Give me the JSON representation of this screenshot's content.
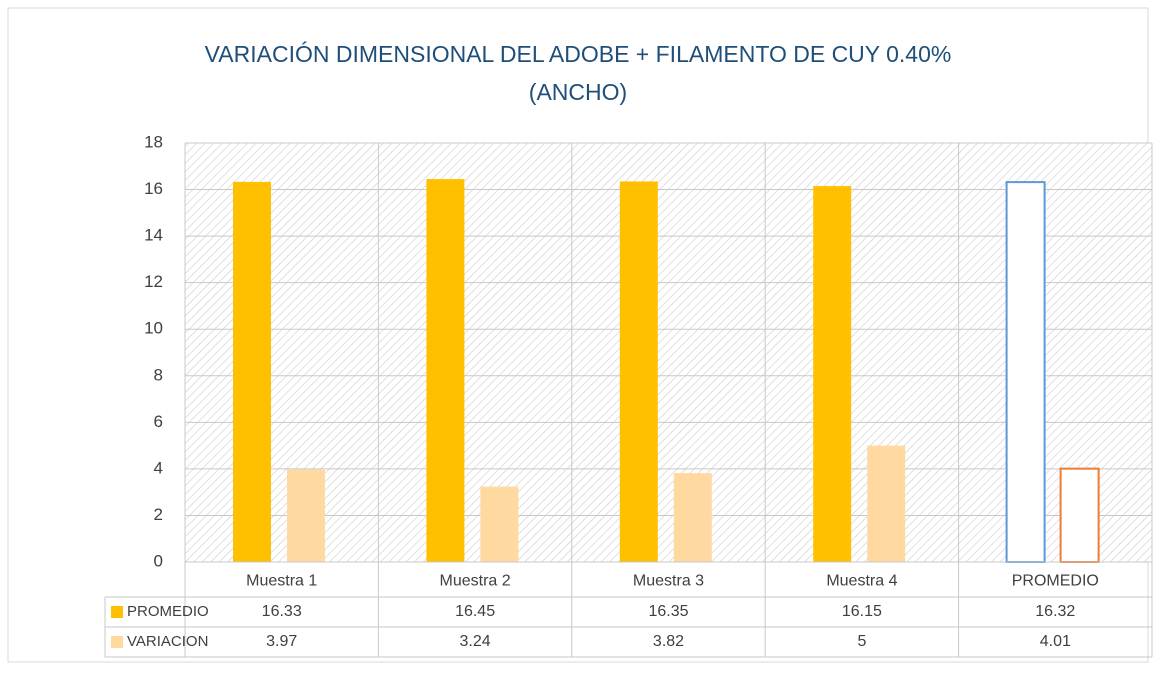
{
  "chart_data": {
    "type": "bar",
    "title": [
      "VARIACIÓN DIMENSIONAL DEL ADOBE + FILAMENTO DE CUY 0.40%",
      "(ANCHO)"
    ],
    "categories": [
      "Muestra 1",
      "Muestra 2",
      "Muestra 3",
      "Muestra 4",
      "PROMEDIO"
    ],
    "series": [
      {
        "name": "PROMEDIO",
        "color": "#ffc000",
        "last_outline_color": "#5b9bd5",
        "values": [
          16.33,
          16.45,
          16.35,
          16.15,
          16.32
        ]
      },
      {
        "name": "VARIACION",
        "color": "#ffd9a0",
        "last_outline_color": "#ed7d31",
        "values": [
          3.97,
          3.24,
          3.82,
          5,
          4.01
        ]
      }
    ],
    "ylim": [
      0,
      18
    ],
    "yticks": [
      0,
      2,
      4,
      6,
      8,
      10,
      12,
      14,
      16,
      18
    ],
    "grid": true,
    "data_table": true
  }
}
